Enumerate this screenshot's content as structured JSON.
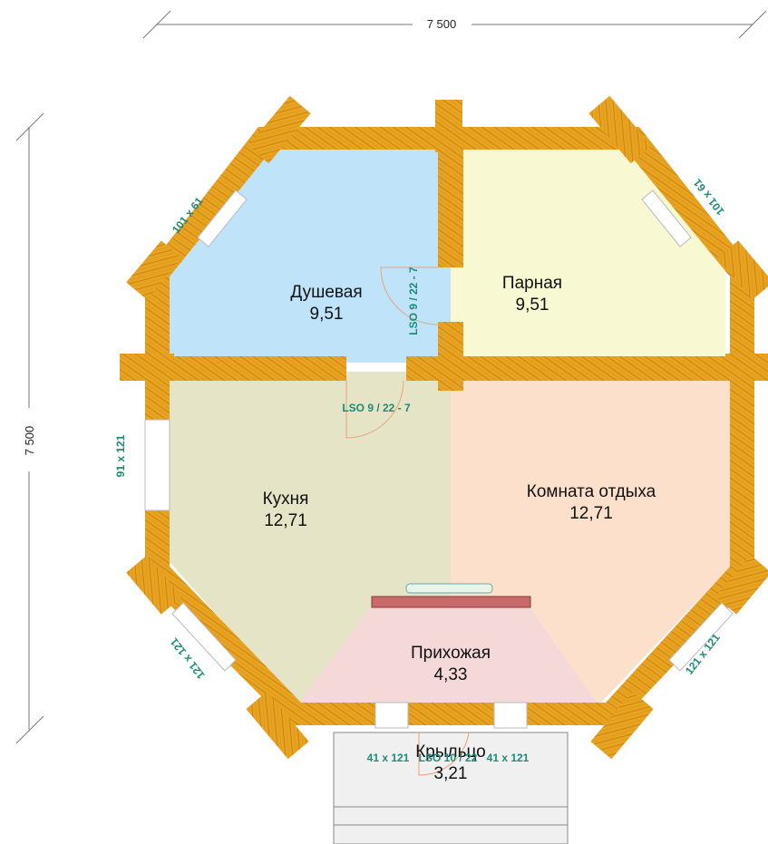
{
  "dimensions": {
    "width": "7 500",
    "height": "7 500"
  },
  "rooms": {
    "shower": {
      "name": "Душевая",
      "area": "9,51"
    },
    "steam": {
      "name": "Парная",
      "area": "9,51"
    },
    "kitchen": {
      "name": "Кухня",
      "area": "12,71"
    },
    "rest": {
      "name": "Комната отдыха",
      "area": "12,71"
    },
    "hall": {
      "name": "Прихожая",
      "area": "4,33"
    },
    "porch": {
      "name": "Крыльцо",
      "area": "3,21"
    }
  },
  "openings": {
    "window_top_left": "101 x 61",
    "window_top_right": "101 x 61",
    "window_left": "91 x 121",
    "window_bottom_left": "121 x 121",
    "window_bottom_right": "121 x 121",
    "door_vertical": "LSO  9 / 22 - 7",
    "door_horizontal": "LSO  9 / 22 - 7",
    "window_porch_left": "41 x 121",
    "door_porch": "LSO 10 / 22",
    "window_porch_right": "41 x 121"
  },
  "colors": {
    "wood": "#e8a321",
    "shower": "#bfe4fa",
    "steam": "#f8f8d2",
    "kitchen": "#e6e4c6",
    "rest": "#fde0cc",
    "hall": "#f5d8d8",
    "porch": "#f0f0f0",
    "label": "#1e8a78"
  }
}
